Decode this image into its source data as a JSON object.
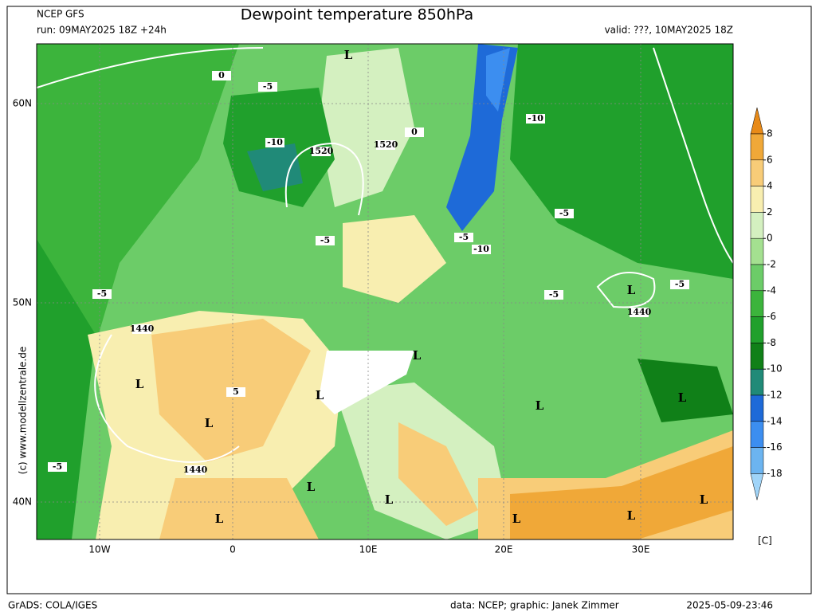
{
  "header": {
    "model": "NCEP GFS",
    "run": "run: 09MAY2025 18Z +24h",
    "title": "Dewpoint temperature 850hPa",
    "valid": "valid: ???, 10MAY2025 18Z"
  },
  "map": {
    "lat_labels": [
      "60N",
      "50N",
      "40N"
    ],
    "lon_labels": [
      "10W",
      "0",
      "10E",
      "20E",
      "30E"
    ],
    "labels": [
      "L",
      "1520",
      "1520",
      "-10",
      "-5",
      "-10",
      "-5",
      "-5",
      "-10",
      "L",
      "1440",
      "-5",
      "-5",
      "1440",
      "L",
      "L",
      "1440",
      "L",
      "L",
      "L",
      "L",
      "L",
      "L",
      "L",
      "L",
      "L",
      "L",
      "5",
      "-5",
      "-5",
      "0",
      "-5",
      "0"
    ]
  },
  "copyright": "(c) www.modellzentrale.de",
  "colorbar": {
    "ticks": [
      8,
      6,
      4,
      2,
      0,
      -2,
      -4,
      -6,
      -8,
      -10,
      -12,
      -14,
      -16,
      -18
    ],
    "colors": [
      "#e88a18",
      "#f0a838",
      "#f8cc78",
      "#f8eeb0",
      "#d4f0c0",
      "#a4e090",
      "#6ccc68",
      "#3cb43c",
      "#20a02c",
      "#108018",
      "#208a78",
      "#1e6ad8",
      "#3c8ef0",
      "#6cb4f0",
      "#a0d4f8"
    ],
    "unit": "[C]"
  },
  "footer": {
    "left": "GrADS: COLA/IGES",
    "credit": "data: NCEP; graphic: Janek Zimmer",
    "timestamp": "2025-05-09-23:46"
  }
}
